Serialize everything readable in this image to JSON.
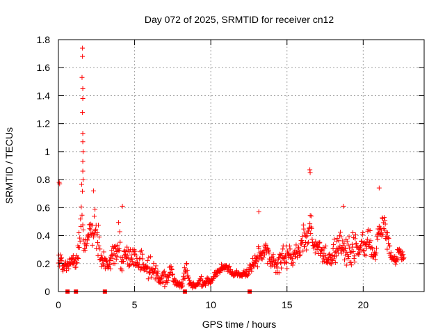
{
  "chart_data": {
    "type": "scatter",
    "title": "Day 072 of 2025, SRMTID for receiver cn12",
    "xlabel": "GPS time / hours",
    "ylabel": "SRMTID / TECUs",
    "xlim": [
      0,
      24
    ],
    "ylim": [
      0,
      1.8
    ],
    "xticks": [
      0,
      5,
      10,
      15,
      20
    ],
    "xtick_labels": [
      "0",
      "5",
      "10",
      "15",
      "20"
    ],
    "yticks": [
      0,
      0.2,
      0.4,
      0.6,
      0.8,
      1,
      1.2,
      1.4,
      1.6,
      1.8
    ],
    "ytick_labels": [
      "0",
      "0.2",
      "0.4",
      "0.6",
      "0.8",
      "1",
      "1.2",
      "1.4",
      "1.6",
      "1.8"
    ],
    "grid": true,
    "marker": "plus",
    "color": "#ff0000",
    "zero_markers": [
      0.6,
      1.15,
      3.05,
      8.3,
      12.55
    ],
    "series": [
      {
        "name": "SRMTID",
        "envelope": [
          [
            0.0,
            0.13,
            0.32
          ],
          [
            0.3,
            0.11,
            0.28
          ],
          [
            0.6,
            0.15,
            0.25
          ],
          [
            0.9,
            0.18,
            0.4
          ],
          [
            1.1,
            0.13,
            0.25
          ],
          [
            1.3,
            0.16,
            0.45
          ],
          [
            1.5,
            0.2,
            0.95
          ],
          [
            1.7,
            0.25,
            0.5
          ],
          [
            2.0,
            0.28,
            0.55
          ],
          [
            2.3,
            0.3,
            0.72
          ],
          [
            2.6,
            0.15,
            0.65
          ],
          [
            2.9,
            0.14,
            0.35
          ],
          [
            3.2,
            0.15,
            0.33
          ],
          [
            3.5,
            0.12,
            0.3
          ],
          [
            3.8,
            0.15,
            0.55
          ],
          [
            4.1,
            0.07,
            0.62
          ],
          [
            4.4,
            0.15,
            0.45
          ],
          [
            4.7,
            0.13,
            0.35
          ],
          [
            5.0,
            0.15,
            0.38
          ],
          [
            5.3,
            0.12,
            0.4
          ],
          [
            5.6,
            0.1,
            0.32
          ],
          [
            5.9,
            0.06,
            0.25
          ],
          [
            6.2,
            0.06,
            0.35
          ],
          [
            6.6,
            0.04,
            0.2
          ],
          [
            7.0,
            0.02,
            0.15
          ],
          [
            7.4,
            0.04,
            0.28
          ],
          [
            7.8,
            0.02,
            0.1
          ],
          [
            8.1,
            0.02,
            0.08
          ],
          [
            8.4,
            0.05,
            0.3
          ],
          [
            8.8,
            0.02,
            0.08
          ],
          [
            9.2,
            0.03,
            0.08
          ],
          [
            9.6,
            0.02,
            0.15
          ],
          [
            10.0,
            0.05,
            0.12
          ],
          [
            10.5,
            0.12,
            0.18
          ],
          [
            11.0,
            0.15,
            0.26
          ],
          [
            11.5,
            0.1,
            0.15
          ],
          [
            12.0,
            0.1,
            0.16
          ],
          [
            12.5,
            0.1,
            0.2
          ],
          [
            13.0,
            0.15,
            0.4
          ],
          [
            13.4,
            0.2,
            0.42
          ],
          [
            13.8,
            0.16,
            0.35
          ],
          [
            14.2,
            0.12,
            0.35
          ],
          [
            14.6,
            0.12,
            0.4
          ],
          [
            15.0,
            0.12,
            0.38
          ],
          [
            15.4,
            0.18,
            0.4
          ],
          [
            15.8,
            0.2,
            0.45
          ],
          [
            16.2,
            0.22,
            0.55
          ],
          [
            16.5,
            0.3,
            0.85
          ],
          [
            16.8,
            0.2,
            0.48
          ],
          [
            17.2,
            0.15,
            0.45
          ],
          [
            17.6,
            0.18,
            0.4
          ],
          [
            18.0,
            0.15,
            0.4
          ],
          [
            18.4,
            0.2,
            0.5
          ],
          [
            18.8,
            0.18,
            0.55
          ],
          [
            19.2,
            0.15,
            0.45
          ],
          [
            19.6,
            0.2,
            0.45
          ],
          [
            20.0,
            0.22,
            0.58
          ],
          [
            20.4,
            0.2,
            0.5
          ],
          [
            20.8,
            0.2,
            0.35
          ],
          [
            21.1,
            0.35,
            0.75
          ],
          [
            21.5,
            0.28,
            0.55
          ],
          [
            21.9,
            0.18,
            0.3
          ],
          [
            22.3,
            0.2,
            0.38
          ],
          [
            22.7,
            0.2,
            0.33
          ]
        ],
        "peaks": [
          [
            1.58,
            1.74
          ],
          [
            1.58,
            1.68
          ],
          [
            1.55,
            1.53
          ],
          [
            1.6,
            1.45
          ],
          [
            1.6,
            1.38
          ],
          [
            1.58,
            1.28
          ],
          [
            1.6,
            1.13
          ],
          [
            1.6,
            1.07
          ],
          [
            1.62,
            1.0
          ],
          [
            1.6,
            0.93
          ],
          [
            1.6,
            0.86
          ],
          [
            1.62,
            0.8
          ],
          [
            0.05,
            0.78
          ],
          [
            0.08,
            0.77
          ],
          [
            16.5,
            0.87
          ],
          [
            16.52,
            0.85
          ],
          [
            2.3,
            0.72
          ],
          [
            21.05,
            0.74
          ],
          [
            4.2,
            0.61
          ],
          [
            18.7,
            0.61
          ],
          [
            13.15,
            0.57
          ]
        ]
      }
    ]
  }
}
